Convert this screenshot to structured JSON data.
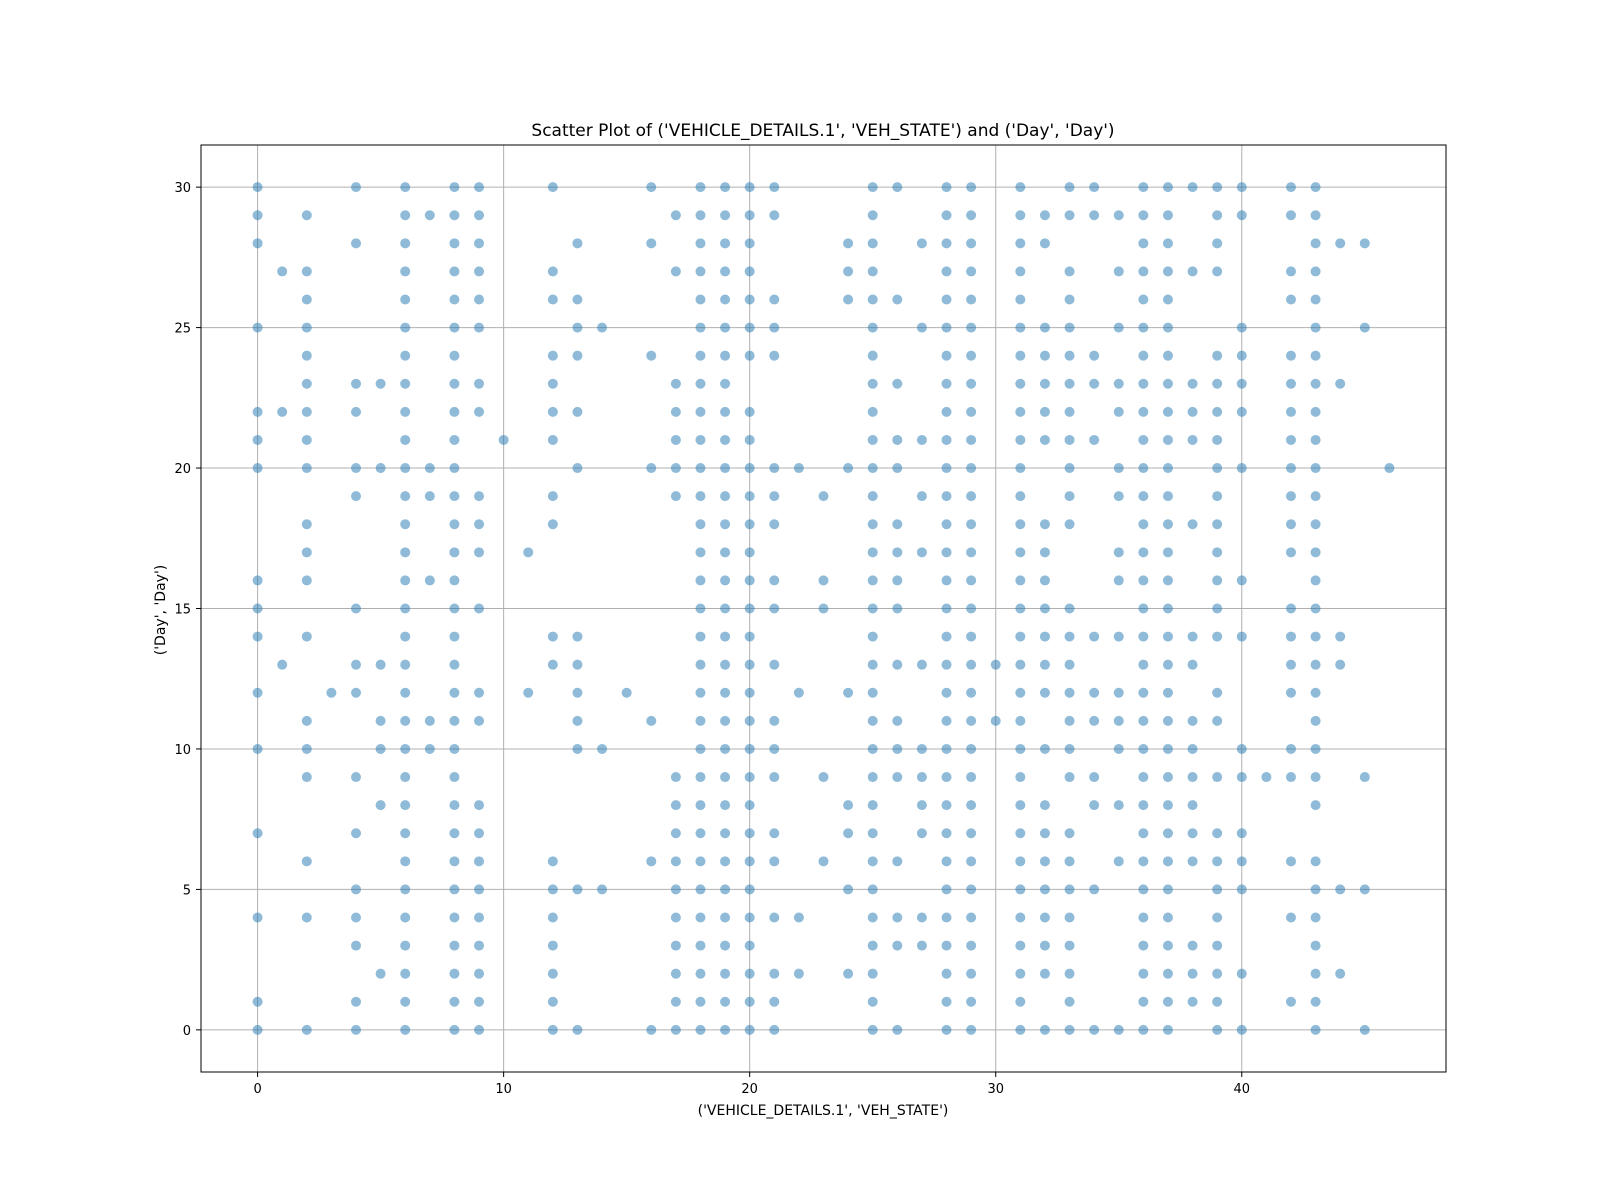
{
  "chart_data": {
    "type": "scatter",
    "title": "Scatter Plot of ('VEHICLE_DETAILS.1', 'VEH_STATE') and ('Day', 'Day')",
    "xlabel": "('VEHICLE_DETAILS.1', 'VEH_STATE')",
    "ylabel": "('Day', 'Day')",
    "xlim": [
      -2.3,
      48.3
    ],
    "ylim": [
      -1.5,
      31.5
    ],
    "xticks": [
      0,
      10,
      20,
      30,
      40
    ],
    "yticks": [
      0,
      5,
      10,
      15,
      20,
      25,
      30
    ],
    "grid": true,
    "marker_color": "#1f77b4",
    "marker_alpha": 0.5,
    "series": [
      {
        "columns": [
          {
            "x": 0,
            "y": [
              0,
              1,
              4,
              7,
              10,
              12,
              14,
              15,
              16,
              20,
              21,
              22,
              25,
              28,
              29,
              30
            ]
          },
          {
            "x": 1,
            "y": [
              13,
              22,
              27
            ]
          },
          {
            "x": 2,
            "y": [
              0,
              4,
              6,
              9,
              10,
              11,
              14,
              16,
              17,
              18,
              20,
              21,
              22,
              23,
              24,
              25,
              26,
              27,
              29
            ]
          },
          {
            "x": 3,
            "y": [
              12
            ]
          },
          {
            "x": 4,
            "y": [
              0,
              1,
              3,
              4,
              5,
              7,
              9,
              12,
              13,
              15,
              19,
              20,
              22,
              23,
              28,
              30
            ]
          },
          {
            "x": 5,
            "y": [
              2,
              8,
              10,
              11,
              13,
              20,
              23
            ]
          },
          {
            "x": 6,
            "y": [
              0,
              1,
              2,
              3,
              4,
              5,
              6,
              7,
              8,
              9,
              10,
              11,
              12,
              13,
              14,
              15,
              16,
              17,
              18,
              19,
              20,
              21,
              22,
              23,
              24,
              25,
              26,
              27,
              28,
              29,
              30
            ]
          },
          {
            "x": 7,
            "y": [
              10,
              11,
              16,
              19,
              20,
              29
            ]
          },
          {
            "x": 8,
            "y": [
              0,
              1,
              2,
              3,
              4,
              5,
              6,
              7,
              8,
              9,
              10,
              11,
              12,
              13,
              14,
              15,
              16,
              17,
              18,
              19,
              20,
              21,
              22,
              23,
              24,
              25,
              26,
              27,
              28,
              29,
              30
            ]
          },
          {
            "x": 9,
            "y": [
              0,
              1,
              2,
              3,
              4,
              5,
              6,
              7,
              8,
              11,
              12,
              15,
              17,
              18,
              19,
              22,
              23,
              25,
              26,
              27,
              28,
              29,
              30
            ]
          },
          {
            "x": 10,
            "y": [
              21
            ]
          },
          {
            "x": 11,
            "y": [
              12,
              17
            ]
          },
          {
            "x": 12,
            "y": [
              0,
              1,
              2,
              3,
              4,
              5,
              6,
              13,
              14,
              18,
              19,
              21,
              22,
              23,
              24,
              26,
              27,
              30
            ]
          },
          {
            "x": 13,
            "y": [
              0,
              5,
              10,
              11,
              12,
              13,
              14,
              20,
              22,
              24,
              25,
              26,
              28
            ]
          },
          {
            "x": 14,
            "y": [
              5,
              10,
              25
            ]
          },
          {
            "x": 15,
            "y": [
              12
            ]
          },
          {
            "x": 16,
            "y": [
              0,
              6,
              11,
              20,
              24,
              28,
              30
            ]
          },
          {
            "x": 17,
            "y": [
              0,
              1,
              2,
              3,
              4,
              5,
              6,
              7,
              8,
              9,
              19,
              20,
              21,
              22,
              23,
              27,
              29
            ]
          },
          {
            "x": 18,
            "y": [
              0,
              1,
              2,
              3,
              4,
              5,
              6,
              7,
              8,
              9,
              10,
              11,
              12,
              13,
              14,
              15,
              16,
              17,
              18,
              19,
              20,
              21,
              22,
              23,
              24,
              25,
              26,
              27,
              28,
              29,
              30
            ]
          },
          {
            "x": 19,
            "y": [
              0,
              1,
              2,
              3,
              4,
              5,
              6,
              7,
              8,
              9,
              10,
              11,
              12,
              13,
              14,
              15,
              16,
              17,
              18,
              19,
              20,
              21,
              22,
              23,
              24,
              25,
              26,
              27,
              28,
              29,
              30
            ]
          },
          {
            "x": 20,
            "y": [
              0,
              1,
              2,
              3,
              4,
              5,
              6,
              7,
              8,
              9,
              10,
              11,
              12,
              13,
              14,
              15,
              16,
              17,
              18,
              19,
              20,
              21,
              22,
              24,
              25,
              26,
              27,
              28,
              29,
              30
            ]
          },
          {
            "x": 21,
            "y": [
              0,
              1,
              2,
              4,
              6,
              7,
              9,
              10,
              11,
              13,
              15,
              16,
              18,
              19,
              20,
              24,
              25,
              26,
              29,
              30
            ]
          },
          {
            "x": 22,
            "y": [
              2,
              4,
              12,
              20
            ]
          },
          {
            "x": 23,
            "y": [
              6,
              9,
              15,
              16,
              19
            ]
          },
          {
            "x": 24,
            "y": [
              2,
              5,
              7,
              8,
              12,
              20,
              26,
              27,
              28
            ]
          },
          {
            "x": 25,
            "y": [
              0,
              1,
              2,
              3,
              4,
              5,
              6,
              7,
              8,
              9,
              10,
              11,
              12,
              13,
              14,
              15,
              16,
              17,
              18,
              19,
              20,
              21,
              22,
              23,
              24,
              25,
              26,
              27,
              28,
              29,
              30
            ]
          },
          {
            "x": 26,
            "y": [
              0,
              3,
              4,
              6,
              9,
              10,
              11,
              13,
              15,
              16,
              17,
              18,
              20,
              21,
              23,
              26,
              30
            ]
          },
          {
            "x": 27,
            "y": [
              3,
              4,
              7,
              8,
              9,
              10,
              13,
              17,
              19,
              21,
              25,
              28
            ]
          },
          {
            "x": 28,
            "y": [
              0,
              1,
              2,
              3,
              4,
              5,
              6,
              7,
              8,
              9,
              10,
              11,
              12,
              13,
              14,
              15,
              16,
              17,
              18,
              19,
              20,
              21,
              22,
              23,
              24,
              25,
              26,
              27,
              28,
              29,
              30
            ]
          },
          {
            "x": 29,
            "y": [
              0,
              1,
              2,
              3,
              4,
              5,
              6,
              7,
              8,
              9,
              10,
              11,
              12,
              13,
              14,
              15,
              16,
              17,
              18,
              19,
              20,
              21,
              22,
              23,
              24,
              25,
              26,
              27,
              28,
              29,
              30
            ]
          },
          {
            "x": 30,
            "y": [
              11,
              13
            ]
          },
          {
            "x": 31,
            "y": [
              0,
              1,
              2,
              3,
              4,
              5,
              6,
              7,
              8,
              9,
              10,
              11,
              12,
              13,
              14,
              15,
              16,
              17,
              18,
              19,
              20,
              21,
              22,
              23,
              24,
              25,
              26,
              27,
              28,
              29,
              30
            ]
          },
          {
            "x": 32,
            "y": [
              0,
              2,
              3,
              4,
              5,
              6,
              7,
              8,
              10,
              12,
              13,
              14,
              15,
              16,
              17,
              18,
              21,
              22,
              23,
              24,
              25,
              28,
              29
            ]
          },
          {
            "x": 33,
            "y": [
              0,
              1,
              2,
              3,
              4,
              5,
              6,
              7,
              9,
              10,
              11,
              12,
              13,
              14,
              15,
              18,
              19,
              20,
              21,
              22,
              23,
              24,
              25,
              26,
              27,
              29,
              30
            ]
          },
          {
            "x": 34,
            "y": [
              0,
              5,
              8,
              9,
              11,
              12,
              14,
              21,
              23,
              24,
              29,
              30
            ]
          },
          {
            "x": 35,
            "y": [
              0,
              6,
              8,
              10,
              11,
              12,
              14,
              16,
              17,
              19,
              20,
              22,
              23,
              25,
              27,
              29
            ]
          },
          {
            "x": 36,
            "y": [
              0,
              1,
              2,
              3,
              4,
              5,
              6,
              7,
              8,
              9,
              10,
              11,
              12,
              13,
              14,
              15,
              16,
              17,
              18,
              19,
              20,
              21,
              22,
              23,
              24,
              25,
              26,
              27,
              28,
              29,
              30
            ]
          },
          {
            "x": 37,
            "y": [
              0,
              1,
              2,
              3,
              4,
              5,
              6,
              7,
              8,
              9,
              10,
              11,
              12,
              13,
              14,
              15,
              16,
              17,
              18,
              19,
              20,
              21,
              22,
              23,
              24,
              25,
              26,
              27,
              28,
              29,
              30
            ]
          },
          {
            "x": 38,
            "y": [
              1,
              2,
              3,
              6,
              7,
              8,
              9,
              10,
              11,
              13,
              14,
              18,
              21,
              22,
              23,
              27,
              30
            ]
          },
          {
            "x": 39,
            "y": [
              0,
              1,
              2,
              3,
              4,
              5,
              6,
              7,
              9,
              11,
              12,
              14,
              15,
              16,
              17,
              18,
              19,
              20,
              21,
              22,
              23,
              24,
              27,
              28,
              29,
              30
            ]
          },
          {
            "x": 40,
            "y": [
              0,
              2,
              5,
              6,
              7,
              9,
              10,
              14,
              16,
              20,
              22,
              23,
              24,
              25,
              29,
              30
            ]
          },
          {
            "x": 41,
            "y": [
              9
            ]
          },
          {
            "x": 42,
            "y": [
              1,
              4,
              6,
              9,
              10,
              12,
              13,
              14,
              15,
              17,
              18,
              19,
              20,
              21,
              22,
              23,
              24,
              26,
              27,
              29,
              30
            ]
          },
          {
            "x": 43,
            "y": [
              0,
              1,
              2,
              3,
              4,
              5,
              6,
              8,
              9,
              10,
              11,
              12,
              13,
              14,
              15,
              16,
              17,
              18,
              19,
              20,
              21,
              22,
              23,
              24,
              25,
              26,
              27,
              28,
              29,
              30
            ]
          },
          {
            "x": 44,
            "y": [
              2,
              5,
              13,
              14,
              23,
              28
            ]
          },
          {
            "x": 45,
            "y": [
              0,
              5,
              9,
              25,
              28
            ]
          },
          {
            "x": 46,
            "y": [
              20
            ]
          }
        ]
      }
    ]
  }
}
